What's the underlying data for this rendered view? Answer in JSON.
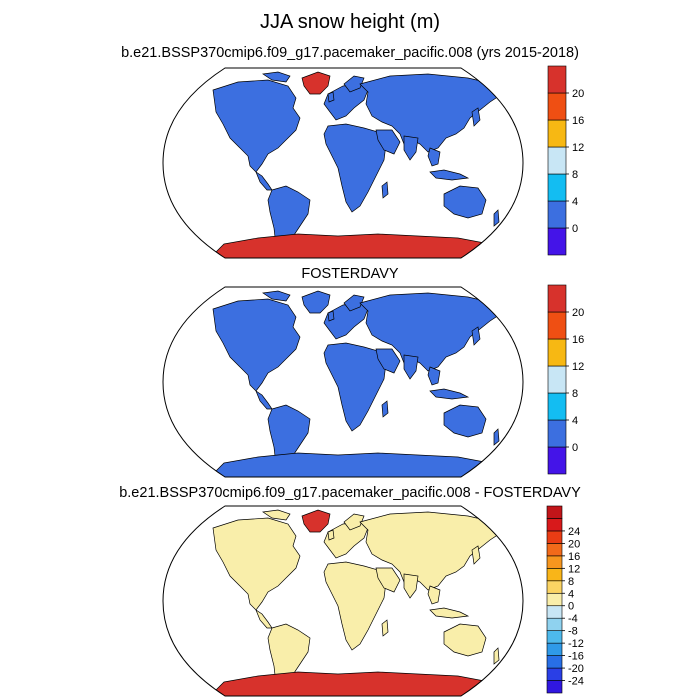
{
  "title": "JJA snow height (m)",
  "panels": [
    {
      "title": "b.e21.BSSP370cmip6.f09_g17.pacemaker_pacific.008 (yrs 2015-2018)",
      "land_color": "#3c6fe0",
      "antarctica_color": "#d7322c",
      "greenland": true,
      "colorbar": {
        "colors": [
          "#4414e8",
          "#3c6fe0",
          "#13bdf2",
          "#c8e6f5",
          "#f7b813",
          "#ef4f13",
          "#d7322c"
        ],
        "labels": [
          "0",
          "4",
          "8",
          "12",
          "16",
          "20"
        ]
      }
    },
    {
      "title": "FOSTERDAVY",
      "land_color": "#3c6fe0",
      "antarctica_color": "#3c6fe0",
      "greenland": false,
      "colorbar": {
        "colors": [
          "#4414e8",
          "#3c6fe0",
          "#13bdf2",
          "#c8e6f5",
          "#f7b813",
          "#ef4f13",
          "#d7322c"
        ],
        "labels": [
          "0",
          "4",
          "8",
          "12",
          "16",
          "20"
        ]
      }
    },
    {
      "title": "b.e21.BSSP370cmip6.f09_g17.pacemaker_pacific.008 - FOSTERDAVY",
      "land_color": "#f9eeaa",
      "antarctica_color": "#d7322c",
      "greenland": true,
      "colorbar": {
        "colors": [
          "#3017e0",
          "#2a3fe6",
          "#286fe6",
          "#2f9ae8",
          "#4db9ec",
          "#8fd2ef",
          "#c8e6f5",
          "#f9eeaa",
          "#fbd463",
          "#f9b518",
          "#f6961e",
          "#f26a1a",
          "#ea3c14",
          "#d8191b",
          "#c21519"
        ],
        "labels": [
          "-24",
          "-20",
          "-16",
          "-12",
          "-8",
          "-4",
          "0",
          "4",
          "8",
          "12",
          "16",
          "20",
          "24"
        ]
      }
    }
  ]
}
